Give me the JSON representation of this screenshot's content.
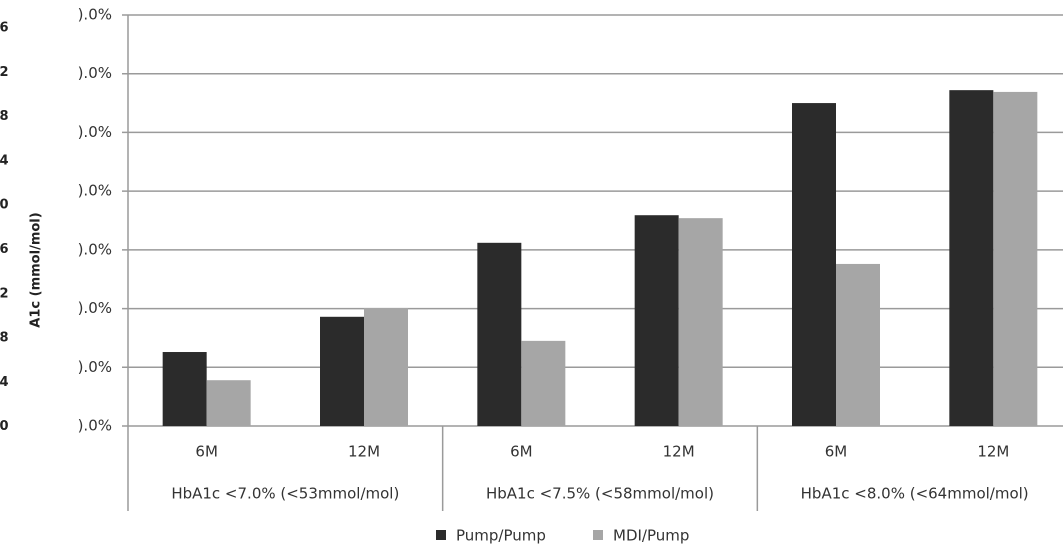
{
  "chart_data": {
    "type": "bar",
    "partial_axis_title": "A1c (mmol/mol)",
    "partial_axis_labels": [
      "6",
      "2",
      "8",
      "4",
      "0",
      "6",
      "2",
      "8",
      "4",
      "0"
    ],
    "categories": [
      "6M",
      "12M",
      "6M",
      "12M",
      "6M",
      "12M"
    ],
    "groups": [
      "HbA1c <7.0% (<53mmol/mol)",
      "HbA1c <7.5% (<58mmol/mol)",
      "HbA1c <8.0% (<64mmol/mol)"
    ],
    "series": [
      {
        "name": "Pump/Pump",
        "color": "#2b2b2b",
        "values": [
          12.6,
          18.6,
          31.2,
          35.9,
          55.0,
          57.2
        ]
      },
      {
        "name": "MDI/Pump",
        "color": "#a6a6a6",
        "values": [
          7.8,
          20.1,
          14.5,
          35.4,
          27.6,
          56.9
        ]
      }
    ],
    "ylim": [
      0,
      70
    ],
    "yticks": [
      {
        "value": 0,
        "label": ").0%"
      },
      {
        "value": 10,
        "label": ").0%"
      },
      {
        "value": 20,
        "label": ").0%"
      },
      {
        "value": 30,
        "label": ").0%"
      },
      {
        "value": 40,
        "label": ").0%"
      },
      {
        "value": 50,
        "label": ").0%"
      },
      {
        "value": 60,
        "label": ").0%"
      },
      {
        "value": 70,
        "label": ").0%"
      }
    ],
    "grid": true,
    "legend": "bottom"
  }
}
